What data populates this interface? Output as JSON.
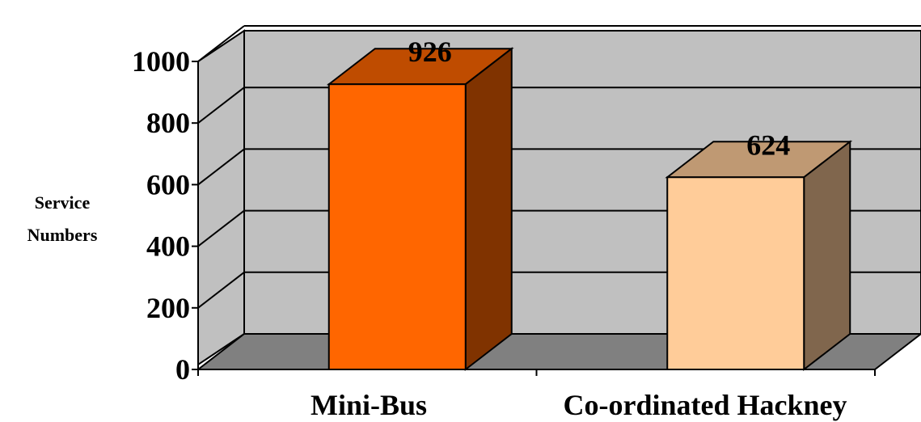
{
  "chart_data": {
    "type": "bar",
    "categories": [
      "Mini-Bus",
      "Co-ordinated Hackney"
    ],
    "values": [
      926,
      624
    ],
    "ylabel": "Service Numbers",
    "ylim": [
      0,
      1000
    ],
    "yticks": [
      "0",
      "200",
      "400",
      "600",
      "800",
      "1000"
    ],
    "data_labels": [
      "926",
      "624"
    ],
    "grid": true,
    "style_3d": true,
    "colors": {
      "wall": "#c0c0c0",
      "floor": "#808080",
      "bar_front": [
        "#ff6600",
        "#ffcc99"
      ],
      "bar_top": [
        "#bf4c00",
        "#bf9973"
      ],
      "bar_side": [
        "#803300",
        "#80664d"
      ]
    }
  }
}
